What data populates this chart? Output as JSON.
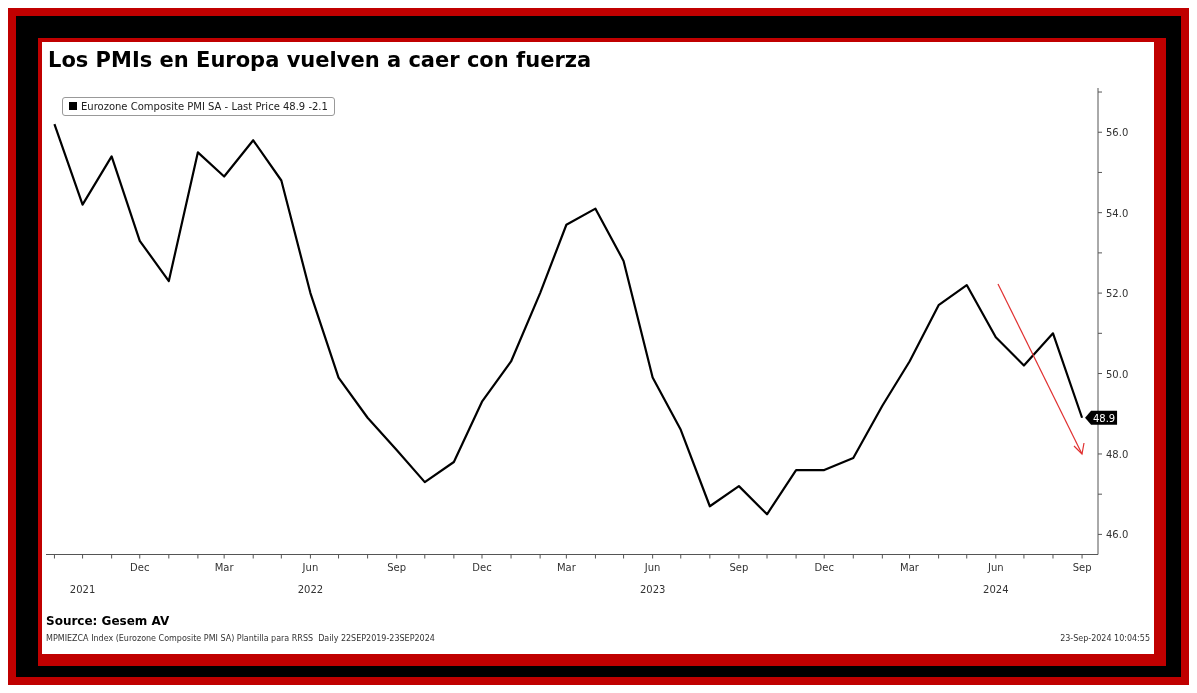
{
  "chart_data": {
    "type": "line",
    "title": "Los PMIs en Europa vuelven a caer con fuerza",
    "x": [
      "2021-09",
      "2021-10",
      "2021-11",
      "2021-12",
      "2022-01",
      "2022-02",
      "2022-03",
      "2022-04",
      "2022-05",
      "2022-06",
      "2022-07",
      "2022-08",
      "2022-09",
      "2022-10",
      "2022-11",
      "2022-12",
      "2023-01",
      "2023-02",
      "2023-03",
      "2023-04",
      "2023-05",
      "2023-06",
      "2023-07",
      "2023-08",
      "2023-09",
      "2023-10",
      "2023-11",
      "2023-12",
      "2024-01",
      "2024-02",
      "2024-03",
      "2024-04",
      "2024-05",
      "2024-06",
      "2024-07",
      "2024-08",
      "2024-09"
    ],
    "series": [
      {
        "name": "Eurozone Composite PMI SA - Last Price 48.9  -2.1",
        "color": "#000000",
        "values": [
          56.2,
          54.2,
          55.4,
          53.3,
          52.3,
          55.5,
          54.9,
          55.8,
          54.8,
          52.0,
          49.9,
          48.9,
          48.1,
          47.3,
          47.8,
          49.3,
          50.3,
          52.0,
          53.7,
          54.1,
          52.8,
          49.9,
          48.6,
          46.7,
          47.2,
          46.5,
          47.6,
          47.6,
          47.9,
          49.2,
          50.3,
          51.7,
          52.2,
          50.9,
          50.2,
          51.0,
          48.9
        ],
        "value_labels": [
          null,
          null,
          null,
          null,
          null,
          null,
          null,
          null,
          null,
          null,
          null,
          null,
          null,
          null,
          null,
          null,
          null,
          null,
          null,
          null,
          null,
          null,
          null,
          null,
          null,
          null,
          null,
          null,
          null,
          null,
          null,
          null,
          null,
          null,
          null,
          null,
          "48.9"
        ]
      }
    ],
    "xlim": [
      "2021-08-23",
      "2024-09-18"
    ],
    "xticks": [
      {
        "value": "2021-09",
        "label": null
      },
      {
        "value": "2021-10",
        "label": null
      },
      {
        "value": "2021-11",
        "label": null
      },
      {
        "value": "2021-12",
        "label": "Dec"
      },
      {
        "value": "2022-01",
        "label": null
      },
      {
        "value": "2022-02",
        "label": null
      },
      {
        "value": "2022-03",
        "label": "Mar"
      },
      {
        "value": "2022-04",
        "label": null
      },
      {
        "value": "2022-05",
        "label": null
      },
      {
        "value": "2022-06",
        "label": "Jun"
      },
      {
        "value": "2022-07",
        "label": null
      },
      {
        "value": "2022-08",
        "label": null
      },
      {
        "value": "2022-09",
        "label": "Sep"
      },
      {
        "value": "2022-10",
        "label": null
      },
      {
        "value": "2022-11",
        "label": null
      },
      {
        "value": "2022-12",
        "label": "Dec"
      },
      {
        "value": "2023-01",
        "label": null
      },
      {
        "value": "2023-02",
        "label": null
      },
      {
        "value": "2023-03",
        "label": "Mar"
      },
      {
        "value": "2023-04",
        "label": null
      },
      {
        "value": "2023-05",
        "label": null
      },
      {
        "value": "2023-06",
        "label": "Jun"
      },
      {
        "value": "2023-07",
        "label": null
      },
      {
        "value": "2023-08",
        "label": null
      },
      {
        "value": "2023-09",
        "label": "Sep"
      },
      {
        "value": "2023-10",
        "label": null
      },
      {
        "value": "2023-11",
        "label": null
      },
      {
        "value": "2023-12",
        "label": "Dec"
      },
      {
        "value": "2024-01",
        "label": null
      },
      {
        "value": "2024-02",
        "label": null
      },
      {
        "value": "2024-03",
        "label": "Mar"
      },
      {
        "value": "2024-04",
        "label": null
      },
      {
        "value": "2024-05",
        "label": null
      },
      {
        "value": "2024-06",
        "label": "Jun"
      },
      {
        "value": "2024-07",
        "label": null
      },
      {
        "value": "2024-08",
        "label": null
      },
      {
        "value": "2024-09",
        "label": "Sep"
      }
    ],
    "x2lim": [
      "2021-08-23",
      "2024-09-18"
    ],
    "x2ticks": [
      {
        "value": "2021-10",
        "label": "2021"
      },
      {
        "value": "2022-06",
        "label": "2022"
      },
      {
        "value": "2023-06",
        "label": "2023"
      },
      {
        "value": "2024-06",
        "label": "2024"
      }
    ],
    "ylim": [
      45.5,
      57.1
    ],
    "yticks": [
      {
        "value": 46,
        "label": "46.0"
      },
      {
        "value": 47,
        "label": null
      },
      {
        "value": 48,
        "label": "48.0"
      },
      {
        "value": 49,
        "label": null
      },
      {
        "value": 50,
        "label": "50.0"
      },
      {
        "value": 51,
        "label": null
      },
      {
        "value": 52,
        "label": "52.0"
      },
      {
        "value": 53,
        "label": null
      },
      {
        "value": 54,
        "label": "54.0"
      },
      {
        "value": 55,
        "label": null
      },
      {
        "value": 56,
        "label": "56.0"
      },
      {
        "value": 57,
        "label": null
      }
    ],
    "legend": "top left",
    "marker": "none",
    "annotations": [
      "Source: Gesem AV",
      "MPMIEZCA Index (Eurozone Composite PMI SA) Plantilla para RRSS  Daily 22SEP2019-23SEP2024",
      "23-Sep-2024 10:04:55"
    ]
  }
}
